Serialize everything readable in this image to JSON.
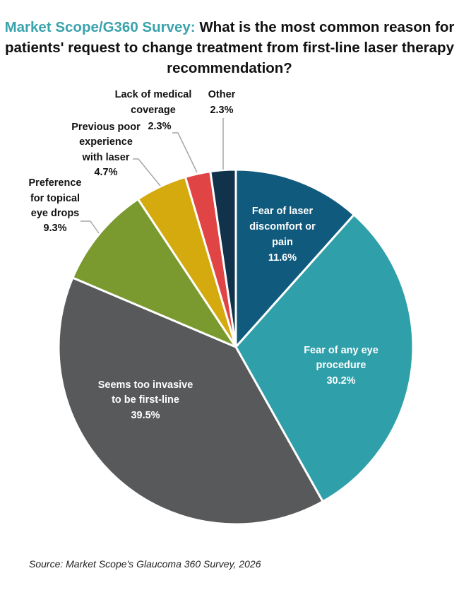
{
  "chart_data": {
    "type": "pie",
    "title_prefix": "Market Scope/G360 Survey:",
    "title": "What is the most common reason for patients' request to change treatment from first-line laser therapy recommendation?",
    "title_accent_color": "#3aa3ac",
    "start": "12 o'clock",
    "direction": "clockwise",
    "slices": [
      {
        "label": [
          "Fear of laser",
          "discomfort or",
          "pain"
        ],
        "value_label": "11.6%",
        "value": 11.6,
        "color": "#0f5a7d",
        "label_position": "inside"
      },
      {
        "label": [
          "Fear of any eye",
          "procedure"
        ],
        "value_label": "30.2%",
        "value": 30.2,
        "color": "#2f9fa9",
        "label_position": "inside"
      },
      {
        "label": [
          "Seems too invasive",
          "to be first-line"
        ],
        "value_label": "39.5%",
        "value": 39.5,
        "color": "#58595b",
        "label_position": "inside"
      },
      {
        "label": [
          "Preference",
          "for topical",
          "eye drops"
        ],
        "value_label": "9.3%",
        "value": 9.3,
        "color": "#7a9a2f",
        "label_position": "outside"
      },
      {
        "label": [
          "Previous poor",
          "experience",
          "with laser"
        ],
        "value_label": "4.7%",
        "value": 4.7,
        "color": "#d4aa0e",
        "label_position": "outside"
      },
      {
        "label": [
          "Lack of medical",
          "coverage"
        ],
        "value_label": "2.3%",
        "value": 2.3,
        "color": "#e04444",
        "label_position": "outside"
      },
      {
        "label": [
          "Other"
        ],
        "value_label": "2.3%",
        "value": 2.3,
        "color": "#10324a",
        "label_position": "outside"
      }
    ]
  },
  "source": "Source: Market Scope's Glaucoma 360 Survey, 2026"
}
